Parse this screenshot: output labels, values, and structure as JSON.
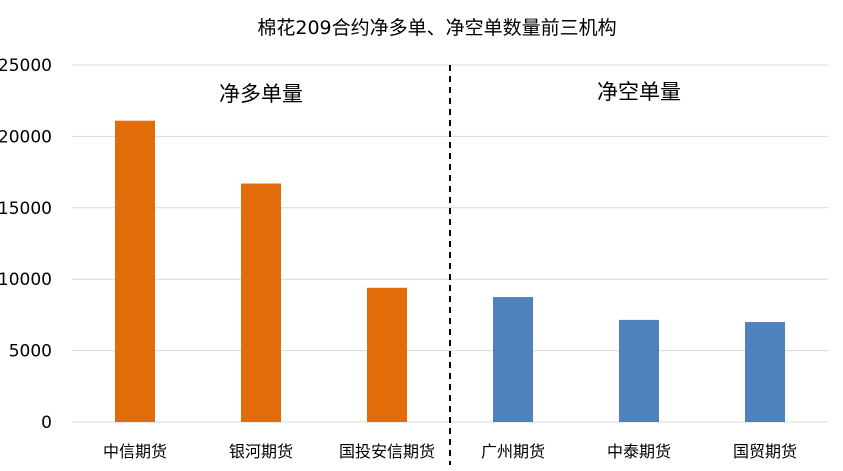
{
  "chart_data": {
    "type": "bar",
    "title": "棉花209合约净多单、净空单数量前三机构",
    "xlabel": "",
    "ylabel": "",
    "ylim": [
      0,
      25000
    ],
    "yticks": [
      0,
      5000,
      10000,
      15000,
      20000,
      25000
    ],
    "grid": true,
    "legend": "none",
    "categories": [
      "中信期货",
      "银河期货",
      "国投安信期货",
      "广州期货",
      "中泰期货",
      "国贸期货"
    ],
    "values": [
      21100,
      16700,
      9400,
      8750,
      7150,
      7000
    ],
    "groups": [
      {
        "label": "净多单量",
        "categories": [
          "中信期货",
          "银河期货",
          "国投安信期货"
        ],
        "values": [
          21100,
          16700,
          9400
        ],
        "color": "#E36C0A"
      },
      {
        "label": "净空单量",
        "categories": [
          "广州期货",
          "中泰期货",
          "国贸期货"
        ],
        "values": [
          8750,
          7150,
          7000
        ],
        "color": "#4F81BD"
      }
    ]
  }
}
